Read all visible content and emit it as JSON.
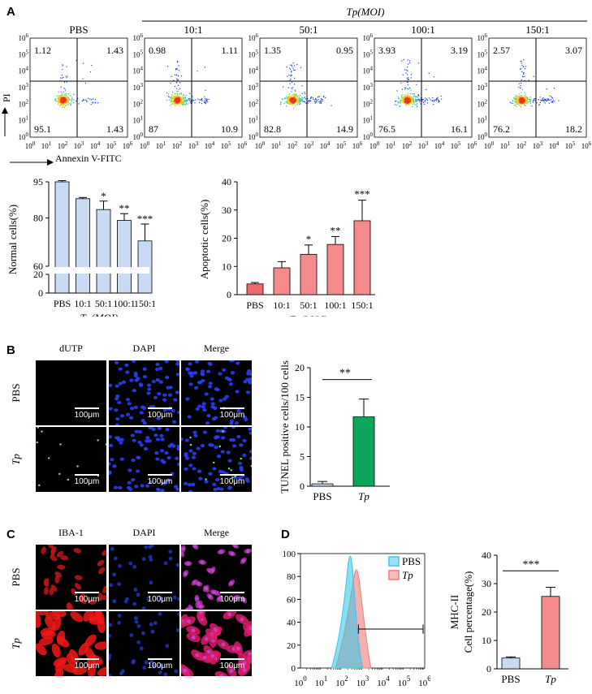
{
  "panel_letters": {
    "a": "A",
    "b": "B",
    "c": "C",
    "d": "D"
  },
  "flow": {
    "group_label": "Tp(MOI)",
    "x_axis_label": "Annexin V-FITC",
    "y_axis_label": "PI",
    "tick_exponents": [
      "0",
      "1",
      "2",
      "3",
      "4",
      "5",
      "6"
    ],
    "panels": [
      {
        "title": "PBS",
        "q_ul": "1.12",
        "q_ur": "1.43",
        "q_ll": "95.1",
        "q_lr": "1.43"
      },
      {
        "title": "10:1",
        "q_ul": "0.98",
        "q_ur": "1.11",
        "q_ll": "87",
        "q_lr": "10.9"
      },
      {
        "title": "50:1",
        "q_ul": "1.35",
        "q_ur": "0.95",
        "q_ll": "82.8",
        "q_lr": "14.9"
      },
      {
        "title": "100:1",
        "q_ul": "3.93",
        "q_ur": "3.19",
        "q_ll": "76.5",
        "q_lr": "16.1"
      },
      {
        "title": "150:1",
        "q_ul": "2.57",
        "q_ur": "3.07",
        "q_ll": "76.2",
        "q_lr": "18.2"
      }
    ]
  },
  "chart_data": [
    {
      "type": "bar",
      "ylabel": "Normal cells(%)",
      "xlabel": "Tp(MOI)",
      "categories": [
        "PBS",
        "10:1",
        "50:1",
        "100:1",
        "150:1"
      ],
      "values": [
        95,
        88,
        83.5,
        79,
        70.5
      ],
      "errors": [
        0.5,
        0.5,
        3.5,
        2.8,
        7.0
      ],
      "significance": [
        "",
        "",
        "*",
        "**",
        "***"
      ],
      "ylim_upper": [
        60,
        95
      ],
      "ylim_lower": [
        0,
        20
      ],
      "yticks": [
        0,
        20,
        60,
        80,
        95
      ],
      "axis_break": true,
      "color": "#c9dbf4"
    },
    {
      "type": "bar",
      "ylabel": "Apoptotic cells(%)",
      "xlabel": "Tp(MOI)",
      "categories": [
        "PBS",
        "10:1",
        "50:1",
        "100:1",
        "150:1"
      ],
      "values": [
        3.8,
        9.5,
        14.3,
        17.8,
        26.2
      ],
      "errors": [
        0.5,
        2.2,
        3.3,
        2.8,
        7.3
      ],
      "significance": [
        "",
        "",
        "*",
        "**",
        "***"
      ],
      "ylim": [
        0,
        40
      ],
      "yticks": [
        0,
        10,
        20,
        30,
        40
      ],
      "colors": [
        "#ee6a6c",
        "#f48a8a",
        "#f48a8a",
        "#f48a8a",
        "#f48a8a"
      ]
    },
    {
      "type": "bar",
      "ylabel": "TUNEL positive cells/100 cells",
      "categories": [
        "PBS",
        "Tp"
      ],
      "values": [
        0.4,
        11.7
      ],
      "errors": [
        0.4,
        3.0
      ],
      "significance_bracket": "**",
      "ylim": [
        0,
        20
      ],
      "yticks": [
        0,
        5,
        10,
        15,
        20
      ],
      "colors": [
        "#c9dbf4",
        "#0ca55a"
      ]
    },
    {
      "type": "area",
      "xlabel_ticks": [
        "0",
        "1",
        "2",
        "3",
        "4",
        "5",
        "6"
      ],
      "yticks": [
        0,
        20,
        40,
        60,
        80,
        100
      ],
      "ylim": [
        0,
        100
      ],
      "legend": [
        "PBS",
        "Tp"
      ],
      "legend_position": "top-right",
      "series": [
        {
          "name": "PBS",
          "x": [
            1.5,
            2.2,
            2.4,
            2.6,
            3.0
          ],
          "y": [
            0,
            45,
            98,
            40,
            0
          ],
          "color": "#3ec6e6"
        },
        {
          "name": "Tp",
          "x": [
            1.7,
            2.4,
            2.7,
            3.0,
            3.4
          ],
          "y": [
            0,
            45,
            86,
            40,
            0
          ],
          "color": "#f07a7a"
        }
      ],
      "gate": "marker line from ~10^2.8 to 10^6"
    },
    {
      "type": "bar",
      "ylabel": "MHC-II Cell percentage(%)",
      "categories": [
        "PBS",
        "Tp"
      ],
      "values": [
        3.8,
        25.5
      ],
      "errors": [
        0.4,
        3.2
      ],
      "significance_bracket": "***",
      "ylim": [
        0,
        40
      ],
      "yticks": [
        0,
        10,
        20,
        30,
        40
      ],
      "colors": [
        "#c9dbf4",
        "#f48a8a"
      ]
    }
  ],
  "micro_b": {
    "columns": [
      "dUTP",
      "DAPI",
      "Merge"
    ],
    "rows": [
      "PBS",
      "Tp"
    ],
    "scale": "100μm"
  },
  "micro_c": {
    "columns": [
      "IBA-1",
      "DAPI",
      "Merge"
    ],
    "rows": [
      "PBS",
      "Tp"
    ],
    "scale": "100μm"
  }
}
